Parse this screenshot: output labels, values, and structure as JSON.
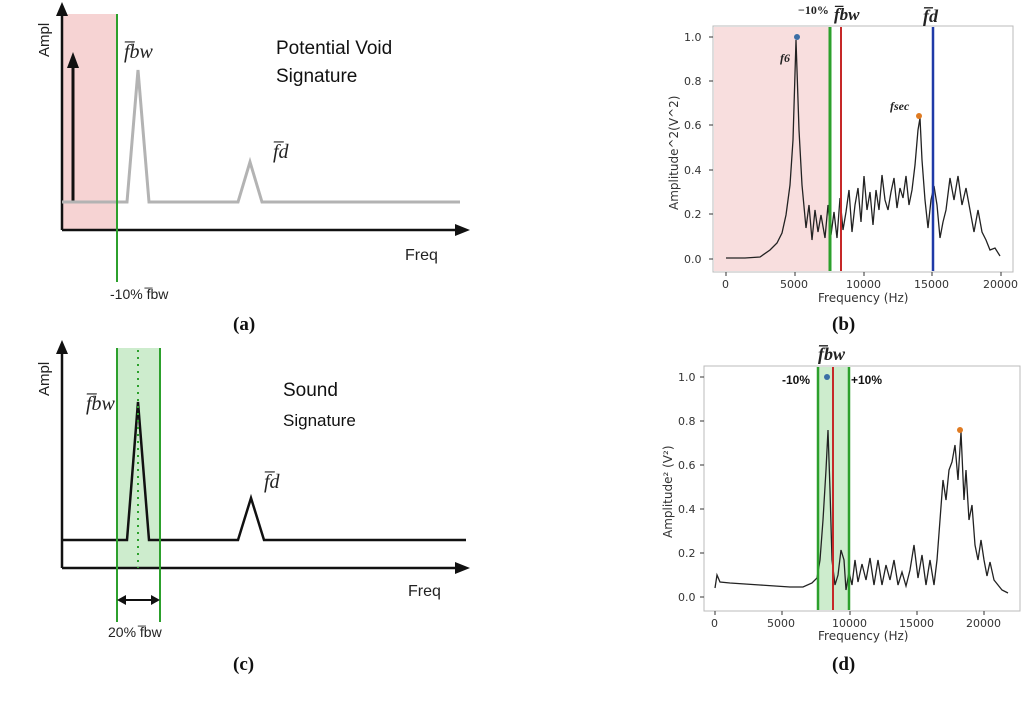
{
  "panels": {
    "a": {
      "caption": "(a)",
      "y_axis": "Ampl",
      "x_axis": "Freq",
      "title_line1": "Potential Void",
      "title_line2": "Signature",
      "peak_bw": "f̅bw",
      "peak_d": "f̅d",
      "threshold": "-10% f̅bw"
    },
    "b": {
      "caption": "(b)",
      "ylabel": "Amplitude^2(V^2)",
      "xlabel": "Frequency (Hz)",
      "top_minus10": "−10%",
      "top_bw": "f̅bw",
      "top_d": "f̅d",
      "f6": "f6",
      "fsec": "fsec",
      "xticks": [
        "0",
        "5000",
        "10000",
        "15000",
        "20000"
      ],
      "yticks": [
        "0.0",
        "0.2",
        "0.4",
        "0.6",
        "0.8",
        "1.0"
      ]
    },
    "c": {
      "caption": "(c)",
      "y_axis": "Ampl",
      "x_axis": "Freq",
      "title_line1": "Sound",
      "title_line2": "Signature",
      "peak_bw": "f̅bw",
      "peak_d": "f̅d",
      "band": "20% f̅bw"
    },
    "d": {
      "caption": "(d)",
      "ylabel": "Amplitude² (V²)",
      "xlabel": "Frequency (Hz)",
      "top_bw": "f̅bw",
      "minus10": "-10%",
      "plus10": "+10%",
      "xticks": [
        "0",
        "5000",
        "10000",
        "15000",
        "20000"
      ],
      "yticks": [
        "0.0",
        "0.2",
        "0.4",
        "0.6",
        "0.8",
        "1.0"
      ]
    }
  },
  "colors": {
    "pink_shade": "#f6d3d3",
    "green_line": "#2ca02c",
    "green_shade": "#cdeccd",
    "red_line": "#c62828",
    "blue_line": "#1f3aa8",
    "grey_signal": "#b0b0b0",
    "black": "#111111"
  }
}
